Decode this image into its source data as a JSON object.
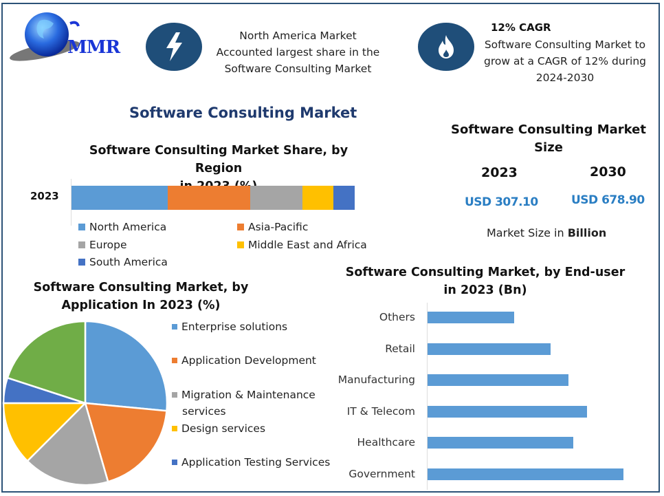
{
  "brand": {
    "logo_text": "MMR",
    "logo_icon": "globe-icon"
  },
  "highlights": [
    {
      "icon": "lightning-icon",
      "lines": [
        "North America Market",
        "Accounted largest share in the",
        "Software Consulting Market"
      ]
    },
    {
      "icon": "flame-icon",
      "title": "12% CAGR",
      "lines": [
        "Software Consulting Market to",
        "grow at a CAGR of 12% during",
        "2024-2030"
      ]
    }
  ],
  "main_title": "Software Consulting Market",
  "market_size": {
    "title_line1": "Software Consulting Market",
    "title_line2": "Size",
    "years": [
      {
        "year": "2023",
        "value": "USD 307.10"
      },
      {
        "year": "2030",
        "value": "USD 678.90"
      }
    ],
    "note_prefix": "Market Size in ",
    "note_bold": "Billion"
  },
  "colors": {
    "north_america": "#5b9bd5",
    "asia_pacific": "#ed7d31",
    "europe": "#a5a5a5",
    "mea": "#ffc000",
    "south_america": "#4472c4",
    "green": "#70ad47",
    "bar": "#5b9bd5",
    "title_blue": "#1f3a6e",
    "value_blue": "#2a7ec3",
    "border": "#2c5277"
  },
  "chart_data": [
    {
      "type": "bar",
      "orientation": "horizontal-stacked",
      "title": "Software Consulting Market Share, by Region in 2023 (%)",
      "title_line1": "Software Consulting Market Share, by Region",
      "title_line2": "in 2023 (%)",
      "categories": [
        "2023"
      ],
      "series": [
        {
          "name": "North America",
          "values": [
            34
          ]
        },
        {
          "name": "Asia-Pacific",
          "values": [
            29
          ]
        },
        {
          "name": "Europe",
          "values": [
            18.5
          ]
        },
        {
          "name": "Middle East and Africa",
          "values": [
            11
          ]
        },
        {
          "name": "South America",
          "values": [
            7.5
          ]
        }
      ],
      "legend_position": "bottom",
      "grid": false
    },
    {
      "type": "pie",
      "title": "Software Consulting Market, by Application In 2023 (%)",
      "title_line1": "Software Consulting Market, by",
      "title_line2": "Application In 2023 (%)",
      "categories": [
        "Enterprise solutions",
        "Application Development",
        "Migration & Maintenance services",
        "Design services",
        "Application Testing Services",
        "Other (unlabeled green)"
      ],
      "values": [
        26.5,
        19,
        17,
        12.5,
        5,
        20
      ],
      "legend": [
        {
          "label_line1": "Enterprise solutions",
          "label_line2": ""
        },
        {
          "label_line1": "Application Development",
          "label_line2": ""
        },
        {
          "label_line1": "Migration & Maintenance",
          "label_line2": "services"
        },
        {
          "label_line1": "Design services",
          "label_line2": ""
        },
        {
          "label_line1": "Application Testing Services",
          "label_line2": ""
        }
      ],
      "legend_position": "right"
    },
    {
      "type": "bar",
      "orientation": "horizontal",
      "title": "Software Consulting Market, by End-user in 2023 (Bn)",
      "title_line1": "Software Consulting Market, by End-user",
      "title_line2": "in 2023 (Bn)",
      "categories": [
        "Others",
        "Retail",
        "Manufacturing",
        "IT & Telecom",
        "Healthcare",
        "Government"
      ],
      "values": [
        126,
        179,
        205,
        232,
        212,
        285
      ],
      "xlabel": "",
      "ylabel": "",
      "grid": false
    }
  ]
}
